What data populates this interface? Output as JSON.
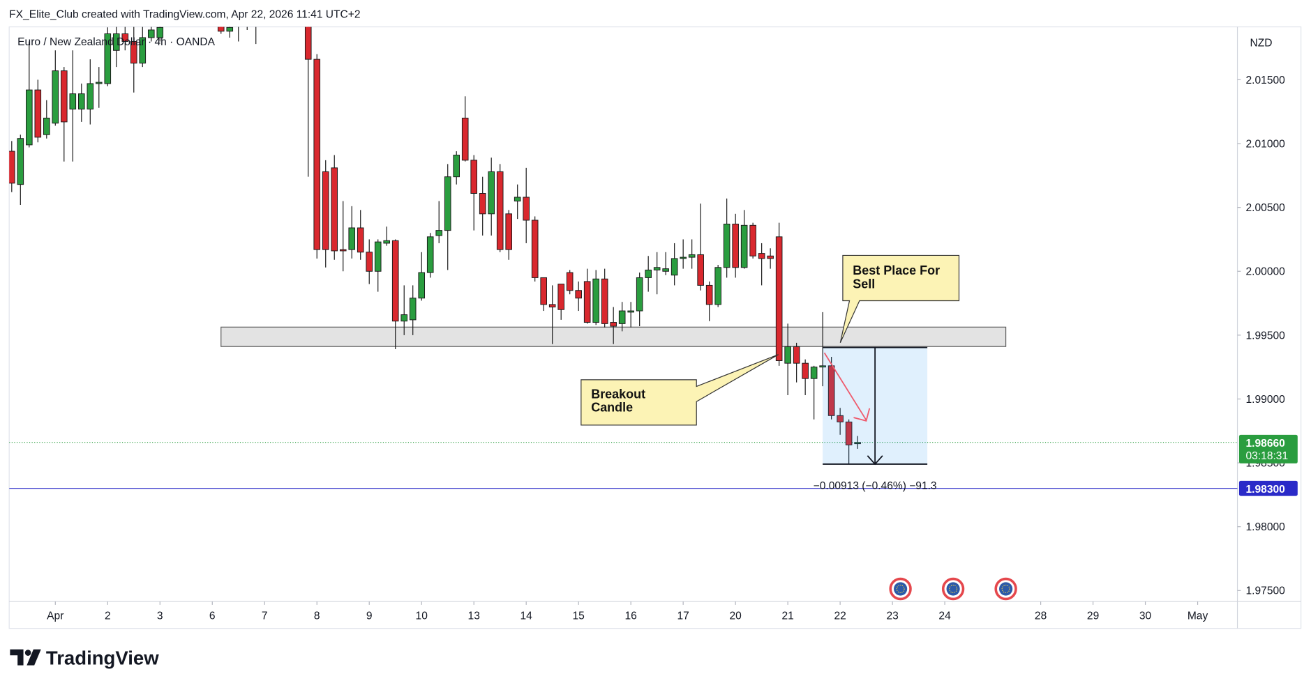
{
  "header": "FX_Elite_Club created with TradingView.com, Apr 22, 2026 11:41 UTC+2",
  "chart_data": {
    "type": "candlestick",
    "symbol": "Euro / New Zealand Dollar · 4h · OANDA",
    "currency": "NZD",
    "up_color": "#2a9d3f",
    "down_color": "#d9282e",
    "border_color": "#1a1a1a",
    "open": [
      2.0094,
      2.0068,
      2.0099,
      2.0142,
      2.0107,
      2.0116,
      2.0157,
      2.0127,
      2.0127,
      2.0127,
      2.0147,
      2.0147,
      2.0173,
      2.0186,
      2.018,
      2.0163,
      2.0183,
      2.0183,
      2.02,
      2.021,
      2.0205,
      2.0214,
      2.0212,
      2.0206,
      2.0193,
      2.0188,
      2.0193,
      2.0196,
      2.0196,
      2.0201,
      2.0212,
      2.022,
      2.0214,
      2.0209,
      2.0199,
      2.0166,
      2.0078,
      2.0081,
      2.0017,
      2.0017,
      2.0034,
      2.0015,
      2.0,
      2.0022,
      2.0024,
      1.9961,
      1.9962,
      1.9979,
      1.9999,
      2.0028,
      2.0032,
      2.0074,
      2.012,
      2.0087,
      2.0061,
      2.0045,
      2.0078,
      2.0045,
      2.0055,
      2.0058,
      2.004,
      1.9995,
      1.9974,
      1.999,
      1.9999,
      1.9985,
      1.9992,
      1.996,
      1.9994,
      1.996,
      1.9959,
      1.9968,
      1.9969,
      1.9995,
      2.0001,
      2.0,
      1.9997,
      2.001,
      2.0011,
      2.0013,
      1.9989,
      1.9974,
      2.0003,
      2.0037,
      2.0003,
      2.0036,
      2.0014,
      2.0012,
      2.0027,
      1.9928,
      1.9941,
      1.9928,
      1.9916,
      1.9925,
      1.9926,
      1.9887,
      1.9882,
      1.9865
    ],
    "high": [
      2.0102,
      2.0107,
      2.018,
      2.015,
      2.0134,
      2.0173,
      2.016,
      2.0173,
      2.0147,
      2.0166,
      2.016,
      2.0191,
      2.0196,
      2.0196,
      2.0193,
      2.0193,
      2.0199,
      2.0199,
      2.0215,
      2.0222,
      2.0218,
      2.0225,
      2.022,
      2.0212,
      2.0199,
      2.0199,
      2.0203,
      2.0206,
      2.0206,
      2.0215,
      2.0224,
      2.023,
      2.0222,
      2.0214,
      2.0206,
      2.017,
      2.0087,
      2.0091,
      2.0055,
      2.0051,
      2.0048,
      2.0025,
      2.0025,
      2.0035,
      2.0025,
      1.9989,
      1.9989,
      2.0015,
      2.003,
      2.0055,
      2.0084,
      2.0094,
      2.0137,
      2.0091,
      2.0074,
      2.0089,
      2.0084,
      2.0048,
      2.0068,
      2.0081,
      2.0043,
      1.9995,
      1.9989,
      1.999,
      2.0001,
      1.9992,
      2.0002,
      2.0001,
      2.0002,
      1.9972,
      1.9976,
      1.9976,
      1.9999,
      2.0012,
      2.0015,
      2.0015,
      2.0022,
      2.0025,
      2.0025,
      2.0053,
      1.9992,
      2.0005,
      2.0057,
      2.0045,
      2.0048,
      2.0038,
      2.0022,
      2.0018,
      2.0038,
      1.9959,
      1.9944,
      1.9931,
      1.9926,
      1.9968,
      1.9933,
      1.9893,
      1.9884,
      1.9871
    ],
    "low": [
      2.0062,
      2.0052,
      2.0097,
      2.0101,
      2.0104,
      2.0114,
      2.0086,
      2.0086,
      2.0117,
      2.0115,
      2.0128,
      2.0145,
      2.016,
      2.0173,
      2.014,
      2.016,
      2.018,
      2.018,
      2.0195,
      2.0204,
      2.02,
      2.0208,
      2.0203,
      2.0198,
      2.0186,
      2.0183,
      2.018,
      2.0189,
      2.0178,
      2.0198,
      2.0206,
      2.021,
      2.0205,
      2.0196,
      2.0074,
      2.001,
      2.0003,
      2.0009,
      2.0,
      2.001,
      2.0009,
      1.999,
      1.9984,
      2.002,
      1.9939,
      1.995,
      1.995,
      1.9977,
      1.9995,
      2.0022,
      2.0001,
      2.0068,
      2.0086,
      2.0032,
      2.0028,
      2.0028,
      2.0015,
      2.0009,
      2.0041,
      2.0022,
      1.9992,
      1.9969,
      1.9943,
      1.9962,
      1.9982,
      1.9969,
      1.9959,
      1.9958,
      1.9956,
      1.9943,
      1.9953,
      1.9956,
      1.9957,
      1.9984,
      1.9982,
      1.9997,
      1.9989,
      2.0002,
      2.0002,
      1.9985,
      1.9961,
      1.9972,
      1.9995,
      1.9995,
      2.0002,
      2.001,
      1.9989,
      2.0002,
      1.9926,
      1.9903,
      1.9913,
      1.9903,
      1.9884,
      1.991,
      1.9884,
      1.9872,
      1.9849,
      1.9861
    ],
    "close": [
      2.0069,
      2.0104,
      2.0142,
      2.0105,
      2.012,
      2.0157,
      2.0117,
      2.0139,
      2.0139,
      2.0147,
      2.0148,
      2.0186,
      2.0186,
      2.018,
      2.0163,
      2.0183,
      2.0189,
      2.0191,
      2.021,
      2.0205,
      2.0214,
      2.0212,
      2.0206,
      2.0201,
      2.0188,
      2.0191,
      2.0194,
      2.0199,
      2.0199,
      2.0212,
      2.022,
      2.0214,
      2.0209,
      2.0199,
      2.0166,
      2.0017,
      2.0017,
      2.0016,
      2.0016,
      2.0034,
      2.0015,
      2.0,
      2.0023,
      2.0024,
      1.9961,
      1.9966,
      1.9979,
      1.9999,
      2.0027,
      2.0032,
      2.0074,
      2.0091,
      2.0087,
      2.0061,
      2.0045,
      2.0078,
      2.0017,
      2.0017,
      2.0058,
      2.004,
      1.9995,
      1.9974,
      1.9972,
      1.997,
      1.9985,
      1.9979,
      1.996,
      1.9994,
      1.9959,
      1.9957,
      1.9969,
      1.9969,
      1.9995,
      2.0001,
      2.0003,
      2.0002,
      2.001,
      2.0011,
      2.0013,
      1.9989,
      1.9974,
      2.0003,
      2.0037,
      2.0003,
      2.0036,
      2.0012,
      2.001,
      2.001,
      1.993,
      1.9941,
      1.9928,
      1.9916,
      1.9925,
      1.9926,
      1.9887,
      1.9882,
      1.9864,
      1.9866
    ],
    "xlim": [
      -0.29,
      140.56
    ],
    "xticks": [
      {
        "value": 5,
        "label": "Apr"
      },
      {
        "value": 11,
        "label": "2"
      },
      {
        "value": 17,
        "label": "3"
      },
      {
        "value": 23,
        "label": "6"
      },
      {
        "value": 29,
        "label": "7"
      },
      {
        "value": 35,
        "label": "8"
      },
      {
        "value": 41,
        "label": "9"
      },
      {
        "value": 47,
        "label": "10"
      },
      {
        "value": 53,
        "label": "13"
      },
      {
        "value": 59,
        "label": "14"
      },
      {
        "value": 65,
        "label": "15"
      },
      {
        "value": 71,
        "label": "16"
      },
      {
        "value": 77,
        "label": "17"
      },
      {
        "value": 83,
        "label": "20"
      },
      {
        "value": 89,
        "label": "21"
      },
      {
        "value": 95,
        "label": "22"
      },
      {
        "value": 101,
        "label": "23"
      },
      {
        "value": 107,
        "label": "24"
      },
      {
        "value": 118,
        "label": "28"
      },
      {
        "value": 124,
        "label": "29"
      },
      {
        "value": 130,
        "label": "30"
      },
      {
        "value": 136,
        "label": "May"
      }
    ],
    "ylim": [
      1.97414,
      2.01914
    ],
    "yticks": [
      {
        "value": 2.015,
        "label": "2.01500"
      },
      {
        "value": 2.01,
        "label": "2.01000"
      },
      {
        "value": 2.005,
        "label": "2.00500"
      },
      {
        "value": 2.0,
        "label": "2.00000"
      },
      {
        "value": 1.995,
        "label": "1.99500"
      },
      {
        "value": 1.99,
        "label": "1.99000"
      },
      {
        "value": 1.985,
        "label": "1.98500"
      },
      {
        "value": 1.98,
        "label": "1.98000"
      },
      {
        "value": 1.975,
        "label": "1.97500"
      }
    ],
    "last_price": {
      "value": 1.9866,
      "label": "1.98660",
      "countdown": "03:18:31",
      "color": "#2a9d3f"
    },
    "price_line": {
      "value": 1.983,
      "label": "1.98300",
      "color": "#2a2ac8"
    },
    "zone": {
      "from": 24,
      "to": 114,
      "low": 1.99411,
      "high": 1.99563
    },
    "short_position": {
      "from": 93,
      "to": 105,
      "entry": 1.99403,
      "target": 1.9849,
      "label": "−0.00913 (−0.46%) −91.3"
    },
    "annotations": [
      {
        "lines": [
          "Best Place For",
          "Sell"
        ]
      },
      {
        "lines": [
          "Breakout",
          "Candle"
        ]
      }
    ]
  },
  "footer": "TradingView"
}
